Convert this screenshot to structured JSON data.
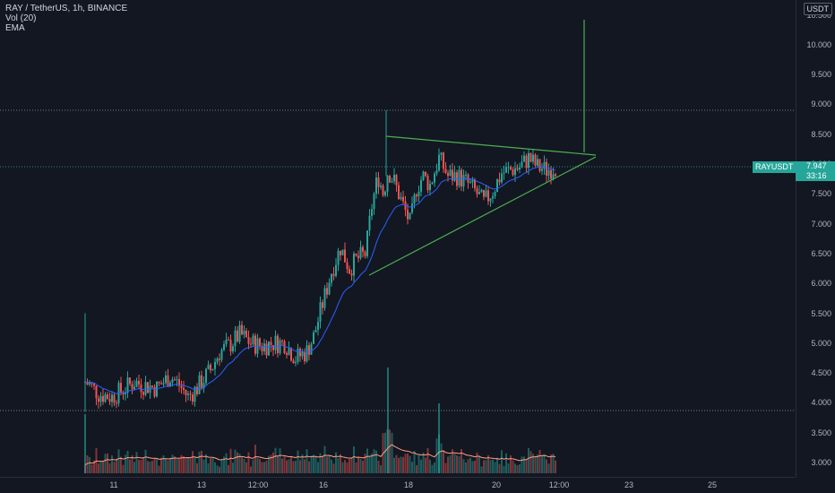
{
  "legend": {
    "title": "RAY / TetherUS, 1h, BINANCE",
    "volume": "Vol (20)",
    "ema": "EMA"
  },
  "price_axis": {
    "currency": "USDT",
    "ticks": [
      "10.500",
      "10.000",
      "9.500",
      "9.000",
      "8.500",
      "8.000",
      "7.500",
      "7.000",
      "6.500",
      "6.000",
      "5.500",
      "5.000",
      "4.500",
      "4.000",
      "3.500",
      "3.000"
    ]
  },
  "time_axis": {
    "ticks": [
      "11",
      "13",
      "12:00",
      "16",
      "18",
      "20",
      "12:00",
      "23",
      "25"
    ]
  },
  "last_price": {
    "symbol": "RAYUSDT",
    "price": "7.947",
    "countdown": "33:16"
  },
  "colors": {
    "background": "#131722",
    "up": "#26a69a",
    "down": "#ef5350",
    "trendline": "#4caf50",
    "ema": "#2962ff",
    "volume_ma": "#ff9e80"
  }
}
